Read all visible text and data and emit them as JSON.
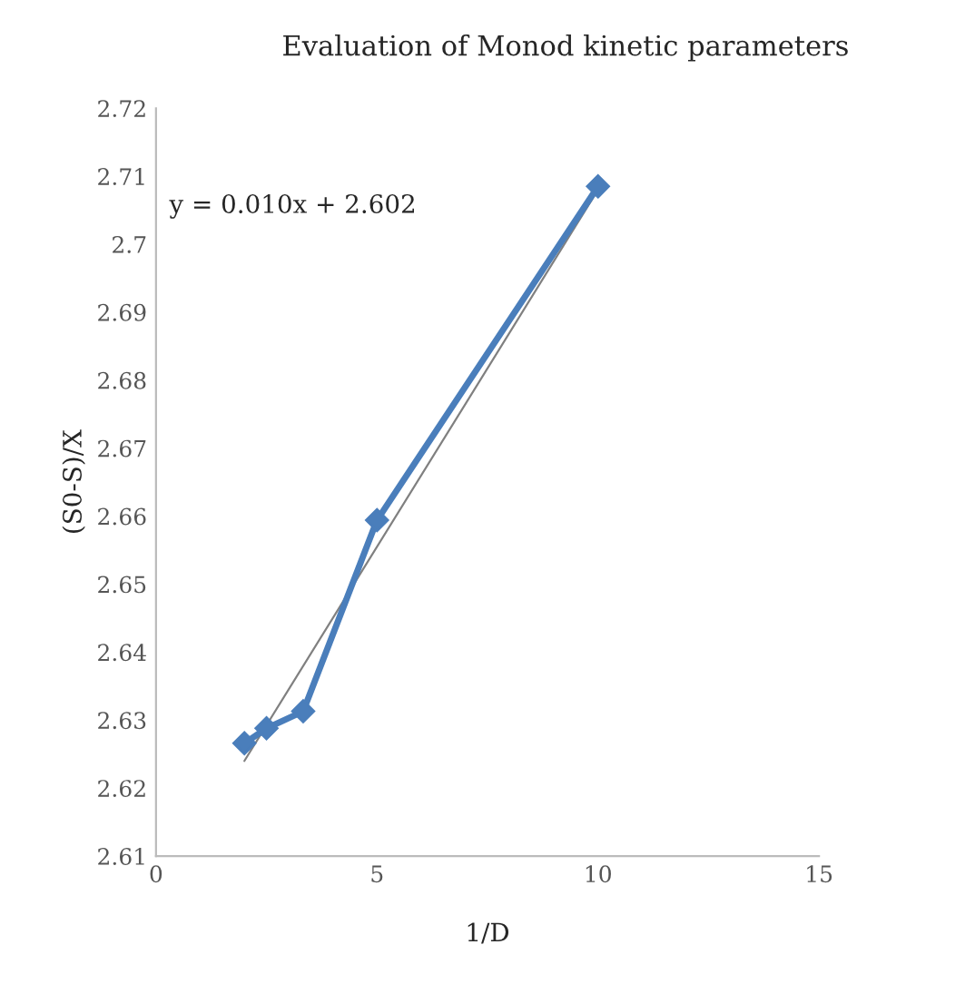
{
  "chart_data": {
    "type": "line",
    "title": "Evaluation of Monod kinetic parameters",
    "xlabel": "1/D",
    "ylabel": "(S0-S)/X",
    "series": [
      {
        "color": "#4a7ebb",
        "x": [
          2,
          2.5,
          3.33,
          5,
          10
        ],
        "values": [
          2.6266,
          2.6288,
          2.6313,
          2.6594,
          2.7085
        ],
        "marker": "diamond",
        "line_style": "solid"
      },
      {
        "color": "#808080",
        "x": [
          2,
          10
        ],
        "values": [
          2.624,
          2.708
        ],
        "marker": "none",
        "line_style": "solid"
      }
    ],
    "annotations": [
      "y = 0.010x + 2.602"
    ],
    "xlim": [
      0,
      15
    ],
    "xticks": [
      0,
      5,
      10,
      15
    ],
    "ylim": [
      2.61,
      2.72
    ],
    "yticks": [
      2.61,
      2.62,
      2.63,
      2.64,
      2.65,
      2.66,
      2.67,
      2.68,
      2.69,
      2.7,
      2.71,
      2.72
    ],
    "grid": false,
    "legend": false
  }
}
